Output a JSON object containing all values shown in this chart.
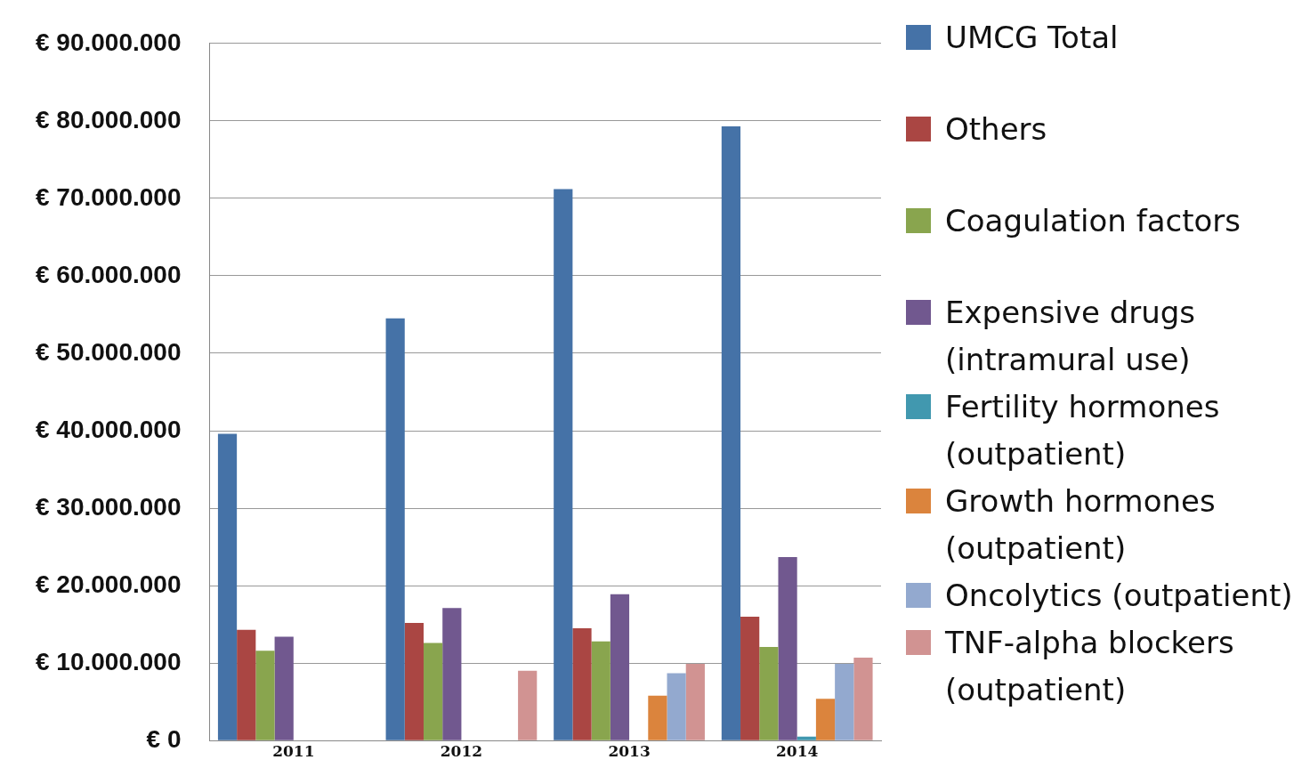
{
  "chart_data": {
    "type": "bar",
    "categories": [
      "2011",
      "2012",
      "2013",
      "2014"
    ],
    "series": [
      {
        "name": "UMCG Total",
        "color": "#4572a7",
        "values": [
          39600000,
          54500000,
          71200000,
          79300000
        ]
      },
      {
        "name": "Others",
        "color": "#aa4643",
        "values": [
          14300000,
          15200000,
          14500000,
          16000000
        ]
      },
      {
        "name": "Coagulation factors",
        "color": "#89a54e",
        "values": [
          11600000,
          12600000,
          12800000,
          12100000
        ]
      },
      {
        "name": "Expensive drugs (intramural use)",
        "color": "#71588f",
        "values": [
          13400000,
          17100000,
          18900000,
          23700000
        ]
      },
      {
        "name": "Fertility hormones (outpatient)",
        "color": "#4198af",
        "values": [
          null,
          null,
          null,
          500000
        ]
      },
      {
        "name": "Growth hormones (outpatient)",
        "color": "#db843d",
        "values": [
          null,
          null,
          5800000,
          5400000
        ]
      },
      {
        "name": "Oncolytics (outpatient)",
        "color": "#93a9cf",
        "values": [
          null,
          null,
          8700000,
          9900000
        ]
      },
      {
        "name": "TNF-alpha blockers (outpatient)",
        "color": "#d19392",
        "values": [
          null,
          9000000,
          9900000,
          10700000
        ]
      }
    ],
    "ylim": [
      0,
      90000000
    ],
    "yticks": [
      {
        "value": 0,
        "label": "€ 0"
      },
      {
        "value": 10000000,
        "label": "€ 10.000.000"
      },
      {
        "value": 20000000,
        "label": "€ 20.000.000"
      },
      {
        "value": 30000000,
        "label": "€ 30.000.000"
      },
      {
        "value": 40000000,
        "label": "€ 40.000.000"
      },
      {
        "value": 50000000,
        "label": "€ 50.000.000"
      },
      {
        "value": 60000000,
        "label": "€ 60.000.000"
      },
      {
        "value": 70000000,
        "label": "€ 70.000.000"
      },
      {
        "value": 80000000,
        "label": "€ 80.000.000"
      },
      {
        "value": 90000000,
        "label": "€ 90.000.000"
      }
    ],
    "grid": "y",
    "legend": "right"
  }
}
